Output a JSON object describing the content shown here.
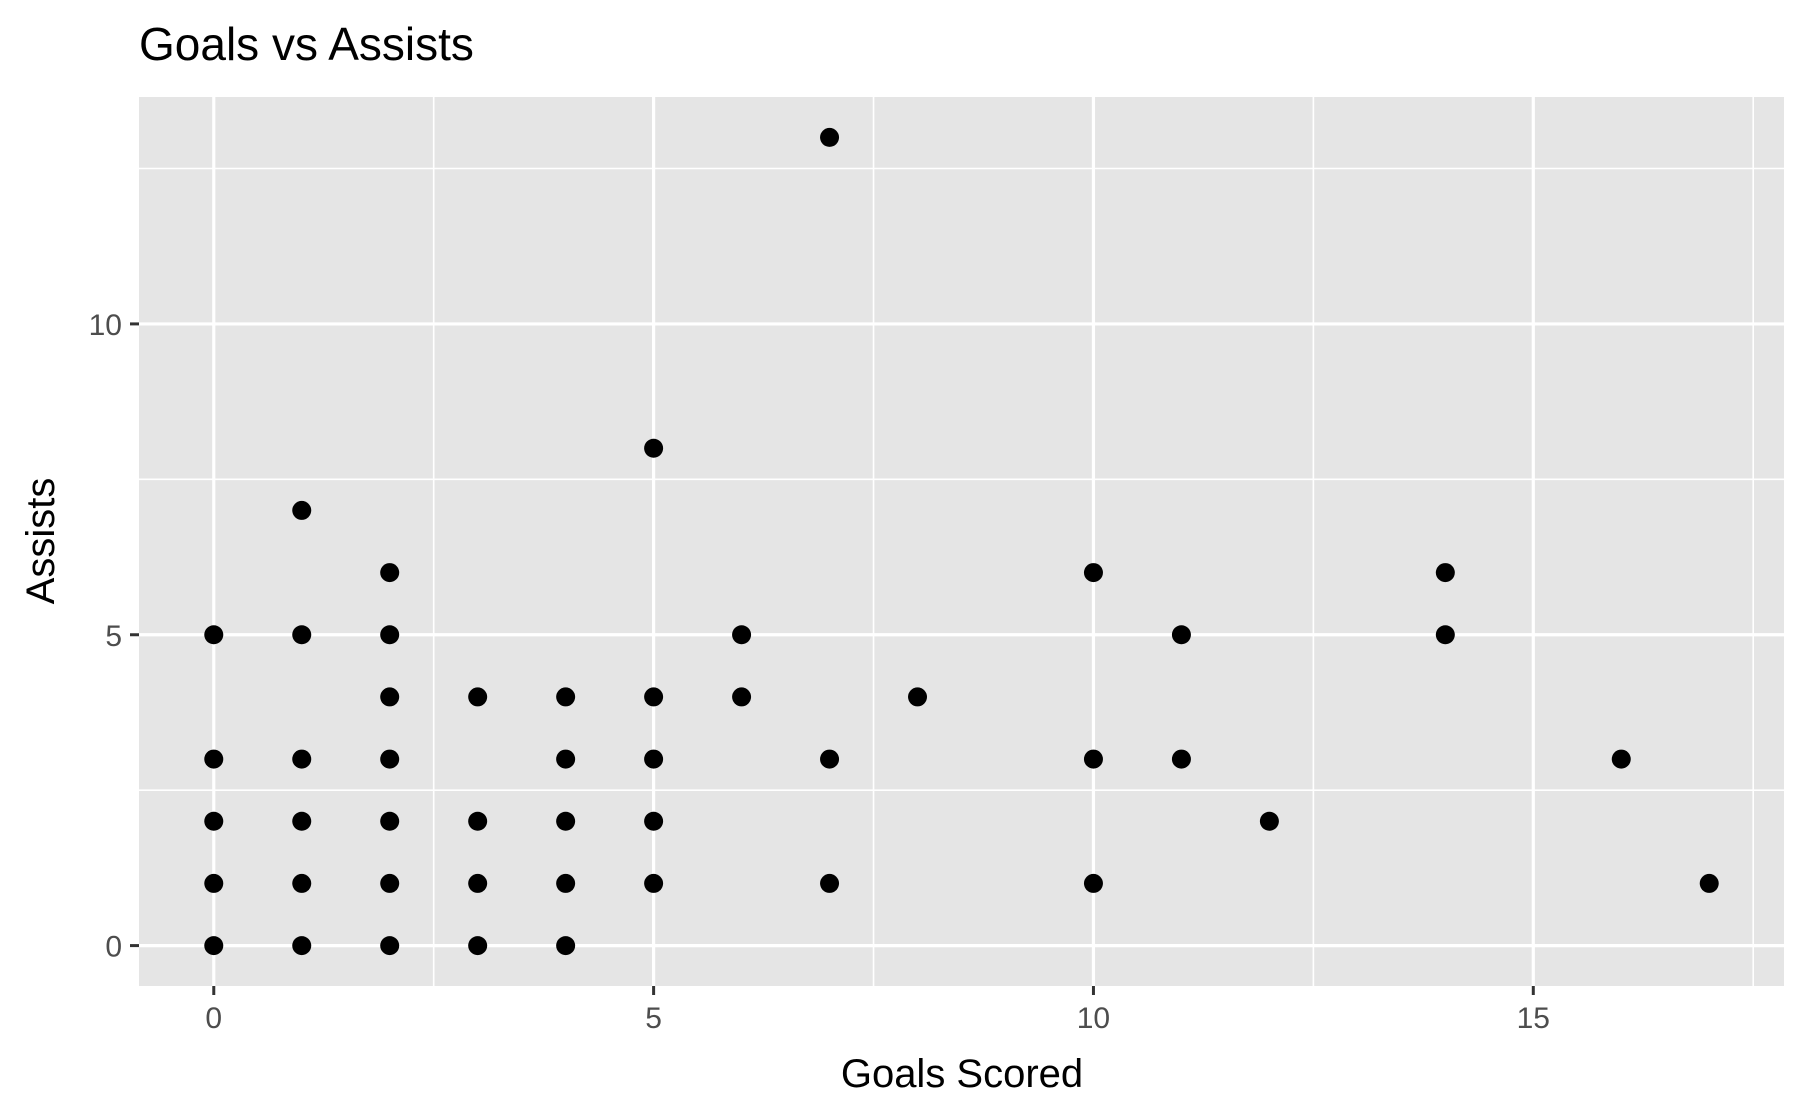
{
  "chart_data": {
    "type": "scatter",
    "title": "Goals vs Assists",
    "xlabel": "Goals Scored",
    "ylabel": "Assists",
    "xlim": [
      -0.85,
      17.85
    ],
    "ylim": [
      -0.65,
      13.65
    ],
    "x_ticks": [
      0,
      5,
      10,
      15
    ],
    "y_ticks": [
      0,
      5,
      10
    ],
    "x_tick_labels": [
      "0",
      "5",
      "10",
      "15"
    ],
    "y_tick_labels": [
      "0",
      "5",
      "10"
    ],
    "x_minor_grid": [
      2.5,
      7.5,
      12.5,
      17.5
    ],
    "y_minor_grid": [
      2.5,
      7.5,
      12.5
    ],
    "grid": true,
    "legend": "none",
    "colors": {
      "panel_background": "#e5e5e5",
      "grid": "#ffffff",
      "point": "#000000",
      "tick_text": "#4d4d4d",
      "tick_mark": "#333333"
    },
    "points": [
      {
        "x": 0,
        "y": 0
      },
      {
        "x": 0,
        "y": 1
      },
      {
        "x": 0,
        "y": 2
      },
      {
        "x": 0,
        "y": 3
      },
      {
        "x": 0,
        "y": 5
      },
      {
        "x": 1,
        "y": 0
      },
      {
        "x": 1,
        "y": 1
      },
      {
        "x": 1,
        "y": 2
      },
      {
        "x": 1,
        "y": 3
      },
      {
        "x": 1,
        "y": 5
      },
      {
        "x": 1,
        "y": 7
      },
      {
        "x": 2,
        "y": 0
      },
      {
        "x": 2,
        "y": 1
      },
      {
        "x": 2,
        "y": 2
      },
      {
        "x": 2,
        "y": 3
      },
      {
        "x": 2,
        "y": 4
      },
      {
        "x": 2,
        "y": 5
      },
      {
        "x": 2,
        "y": 6
      },
      {
        "x": 3,
        "y": 0
      },
      {
        "x": 3,
        "y": 1
      },
      {
        "x": 3,
        "y": 2
      },
      {
        "x": 3,
        "y": 4
      },
      {
        "x": 4,
        "y": 0
      },
      {
        "x": 4,
        "y": 1
      },
      {
        "x": 4,
        "y": 2
      },
      {
        "x": 4,
        "y": 3
      },
      {
        "x": 4,
        "y": 4
      },
      {
        "x": 5,
        "y": 1
      },
      {
        "x": 5,
        "y": 2
      },
      {
        "x": 5,
        "y": 3
      },
      {
        "x": 5,
        "y": 4
      },
      {
        "x": 5,
        "y": 8
      },
      {
        "x": 6,
        "y": 4
      },
      {
        "x": 6,
        "y": 5
      },
      {
        "x": 7,
        "y": 1
      },
      {
        "x": 7,
        "y": 3
      },
      {
        "x": 7,
        "y": 13
      },
      {
        "x": 8,
        "y": 4
      },
      {
        "x": 10,
        "y": 1
      },
      {
        "x": 10,
        "y": 3
      },
      {
        "x": 10,
        "y": 6
      },
      {
        "x": 11,
        "y": 3
      },
      {
        "x": 11,
        "y": 5
      },
      {
        "x": 12,
        "y": 2
      },
      {
        "x": 14,
        "y": 5
      },
      {
        "x": 14,
        "y": 6
      },
      {
        "x": 16,
        "y": 3
      },
      {
        "x": 17,
        "y": 1
      }
    ]
  }
}
